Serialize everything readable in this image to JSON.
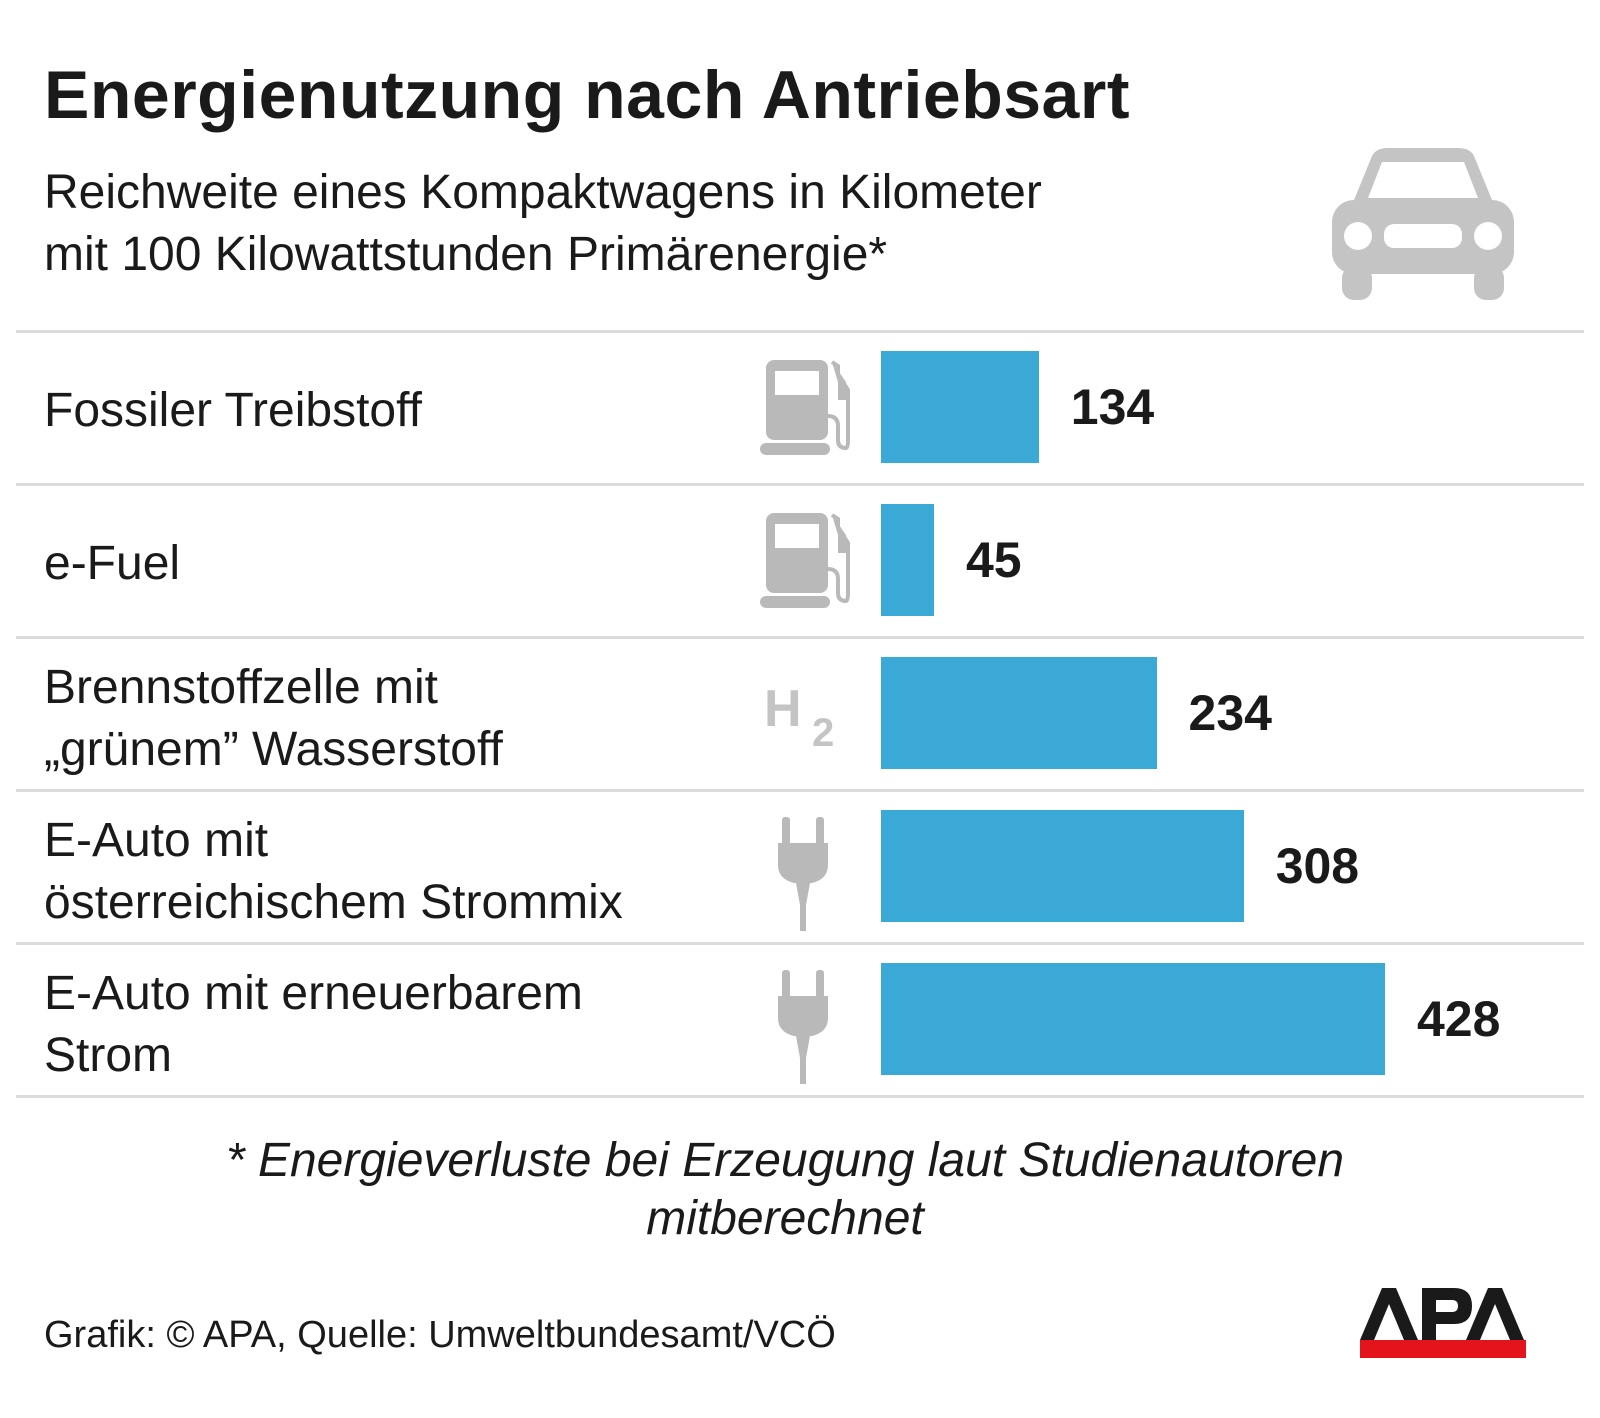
{
  "title": "Energienutzung nach Antriebsart",
  "subtitle_line1": "Reichweite eines Kompaktwagens in Kilometer",
  "subtitle_line2": "mit 100 Kilowattstunden Primärenergie*",
  "footnote_line1": "* Energieverluste bei Erzeugung laut Studienautoren",
  "footnote_line2": "mitberechnet",
  "source": "Grafik: © APA, Quelle: Umweltbundesamt/VCÖ",
  "logo_text": "APA",
  "colors": {
    "bar": "#3aa9d6",
    "icon": "#b9b9b9",
    "logo_red": "#e3141b"
  },
  "chart_data": {
    "type": "bar",
    "orientation": "horizontal",
    "unit": "km",
    "categories": [
      "Fossiler Treibstoff",
      "e-Fuel",
      "Brennstoffzelle mit „grünem” Wasserstoff",
      "E-Auto mit österreichischem Strommix",
      "E-Auto mit erneuerbarem Strom"
    ],
    "values": [
      134,
      45,
      234,
      308,
      428
    ],
    "value_labels": [
      "134",
      "45",
      "234",
      "308",
      "428"
    ],
    "rows": [
      {
        "label_lines": [
          "Fossiler Treibstoff"
        ],
        "icon": "fuel-pump-icon"
      },
      {
        "label_lines": [
          "e-Fuel"
        ],
        "icon": "fuel-pump-icon"
      },
      {
        "label_lines": [
          "Brennstoffzelle mit",
          "„grünem” Wasserstoff"
        ],
        "icon": "h2-icon",
        "icon_text": "H",
        "icon_sub": "2"
      },
      {
        "label_lines": [
          "E-Auto mit",
          "österreichischem Strommix"
        ],
        "icon": "plug-icon"
      },
      {
        "label_lines": [
          "E-Auto mit erneuerbarem",
          "Strom"
        ],
        "icon": "plug-icon"
      }
    ],
    "grid": false,
    "legend": "none"
  }
}
